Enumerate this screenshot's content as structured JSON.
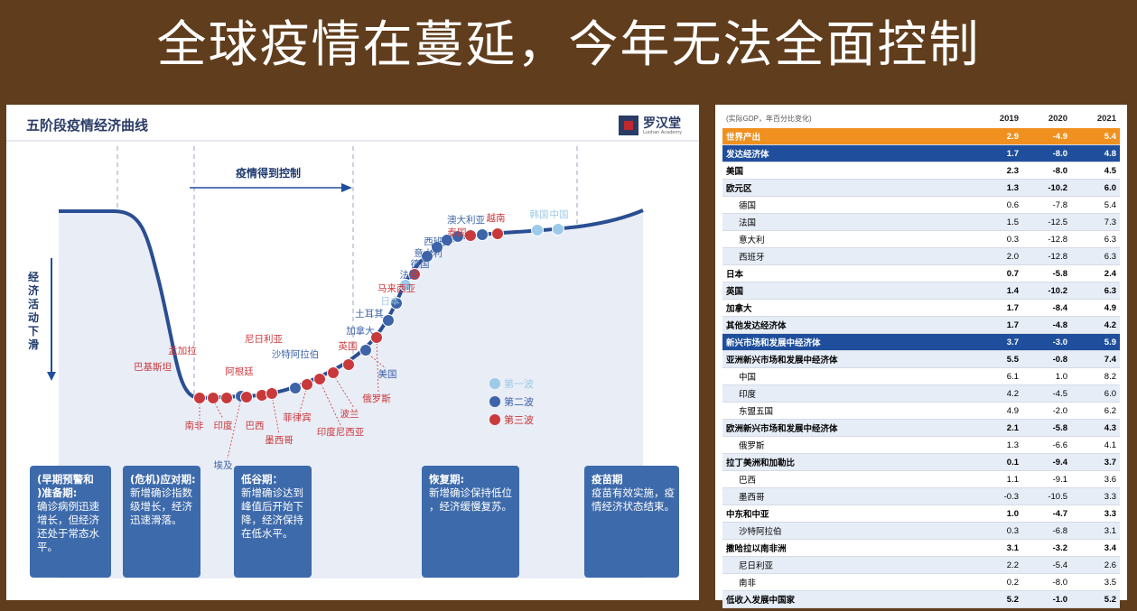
{
  "slide": {
    "title": "全球疫情在蔓延，今年无法全面控制"
  },
  "chart_data": [
    {
      "type": "line",
      "title": "五阶段疫情经济曲线",
      "logo": {
        "name": "罗汉堂",
        "sub": "Luohan Academy"
      },
      "y_axis_label": "经济活动下滑",
      "control_label": "疫情得到控制",
      "legend": [
        {
          "label": "第一波",
          "color": "#9ccae8"
        },
        {
          "label": "第二波",
          "color": "#3d63a8"
        },
        {
          "label": "第三波",
          "color": "#c9393c"
        }
      ],
      "countries": [
        {
          "name": "巴基斯坦",
          "wave": 3
        },
        {
          "name": "孟加拉",
          "wave": 3
        },
        {
          "name": "南非",
          "wave": 3
        },
        {
          "name": "印度",
          "wave": 3
        },
        {
          "name": "阿根廷",
          "wave": 3
        },
        {
          "name": "埃及",
          "wave": 2
        },
        {
          "name": "巴西",
          "wave": 3
        },
        {
          "name": "尼日利亚",
          "wave": 3
        },
        {
          "name": "墨西哥",
          "wave": 3
        },
        {
          "name": "沙特阿拉伯",
          "wave": 2
        },
        {
          "name": "菲律宾",
          "wave": 3
        },
        {
          "name": "印度尼西亚",
          "wave": 3
        },
        {
          "name": "波兰",
          "wave": 3
        },
        {
          "name": "英国",
          "wave": 3
        },
        {
          "name": "美国",
          "wave": 2
        },
        {
          "name": "俄罗斯",
          "wave": 3
        },
        {
          "name": "加拿大",
          "wave": 2
        },
        {
          "name": "土耳其",
          "wave": 2
        },
        {
          "name": "日本",
          "wave": 1
        },
        {
          "name": "马来西亚",
          "wave": 3
        },
        {
          "name": "法国",
          "wave": 2
        },
        {
          "name": "德国",
          "wave": 2
        },
        {
          "name": "意大利",
          "wave": 2
        },
        {
          "name": "西班牙",
          "wave": 2
        },
        {
          "name": "泰国",
          "wave": 3
        },
        {
          "name": "澳大利亚",
          "wave": 2
        },
        {
          "name": "越南",
          "wave": 3
        },
        {
          "name": "韩国",
          "wave": 1
        },
        {
          "name": "中国",
          "wave": 1
        }
      ],
      "stages": [
        {
          "title": "(早期预警和)准备期:",
          "text": "确诊病例迅速增长，但经济还处于常态水平。"
        },
        {
          "title": "(危机)应对期:",
          "text": "新增确诊指数级增长，经济迅速滑落。"
        },
        {
          "title": "低谷期：",
          "text": "新增确诊达到峰值后开始下降，经济保持在低水平。"
        },
        {
          "title": "恢复期:",
          "text": "新增确诊保持低位，经济缓慢复苏。"
        },
        {
          "title": "疫苗期",
          "text": "疫苗有效实施，疫情经济状态结束。"
        }
      ]
    },
    {
      "type": "table",
      "note": "(实际GDP，年百分比变化)",
      "columns": [
        "2019",
        "2020",
        "2021"
      ],
      "rows": [
        {
          "name": "世界产出",
          "values": [
            "2.9",
            "-4.9",
            "5.4"
          ],
          "style": "orange"
        },
        {
          "name": "发达经济体",
          "values": [
            "1.7",
            "-8.0",
            "4.8"
          ],
          "style": "blue"
        },
        {
          "name": "美国",
          "values": [
            "2.3",
            "-8.0",
            "4.5"
          ],
          "style": "bold"
        },
        {
          "name": "欧元区",
          "values": [
            "1.3",
            "-10.2",
            "6.0"
          ],
          "style": "bold"
        },
        {
          "name": "德国",
          "values": [
            "0.6",
            "-7.8",
            "5.4"
          ],
          "style": "indent"
        },
        {
          "name": "法国",
          "values": [
            "1.5",
            "-12.5",
            "7.3"
          ],
          "style": "indent"
        },
        {
          "name": "意大利",
          "values": [
            "0.3",
            "-12.8",
            "6.3"
          ],
          "style": "indent"
        },
        {
          "name": "西班牙",
          "values": [
            "2.0",
            "-12.8",
            "6.3"
          ],
          "style": "indent"
        },
        {
          "name": "日本",
          "values": [
            "0.7",
            "-5.8",
            "2.4"
          ],
          "style": "bold"
        },
        {
          "name": "英国",
          "values": [
            "1.4",
            "-10.2",
            "6.3"
          ],
          "style": "bold"
        },
        {
          "name": "加拿大",
          "values": [
            "1.7",
            "-8.4",
            "4.9"
          ],
          "style": "bold"
        },
        {
          "name": "其他发达经济体",
          "values": [
            "1.7",
            "-4.8",
            "4.2"
          ],
          "style": "bold"
        },
        {
          "name": "新兴市场和发展中经济体",
          "values": [
            "3.7",
            "-3.0",
            "5.9"
          ],
          "style": "blue"
        },
        {
          "name": "亚洲新兴市场和发展中经济体",
          "values": [
            "5.5",
            "-0.8",
            "7.4"
          ],
          "style": "bold"
        },
        {
          "name": "中国",
          "values": [
            "6.1",
            "1.0",
            "8.2"
          ],
          "style": "indent"
        },
        {
          "name": "印度",
          "values": [
            "4.2",
            "-4.5",
            "6.0"
          ],
          "style": "indent"
        },
        {
          "name": "东盟五国",
          "values": [
            "4.9",
            "-2.0",
            "6.2"
          ],
          "style": "indent"
        },
        {
          "name": "欧洲新兴市场和发展中经济体",
          "values": [
            "2.1",
            "-5.8",
            "4.3"
          ],
          "style": "bold"
        },
        {
          "name": "俄罗斯",
          "values": [
            "1.3",
            "-6.6",
            "4.1"
          ],
          "style": "indent"
        },
        {
          "name": "拉丁美洲和加勒比",
          "values": [
            "0.1",
            "-9.4",
            "3.7"
          ],
          "style": "bold"
        },
        {
          "name": "巴西",
          "values": [
            "1.1",
            "-9.1",
            "3.6"
          ],
          "style": "indent"
        },
        {
          "name": "墨西哥",
          "values": [
            "-0.3",
            "-10.5",
            "3.3"
          ],
          "style": "indent"
        },
        {
          "name": "中东和中亚",
          "values": [
            "1.0",
            "-4.7",
            "3.3"
          ],
          "style": "bold"
        },
        {
          "name": "沙特阿拉伯",
          "values": [
            "0.3",
            "-6.8",
            "3.1"
          ],
          "style": "indent"
        },
        {
          "name": "撒哈拉以南非洲",
          "values": [
            "3.1",
            "-3.2",
            "3.4"
          ],
          "style": "bold"
        },
        {
          "name": "尼日利亚",
          "values": [
            "2.2",
            "-5.4",
            "2.6"
          ],
          "style": "indent"
        },
        {
          "name": "南非",
          "values": [
            "0.2",
            "-8.0",
            "3.5"
          ],
          "style": "indent"
        },
        {
          "name": "低收入发展中国家",
          "values": [
            "5.2",
            "-1.0",
            "5.2"
          ],
          "style": "bold"
        }
      ]
    }
  ]
}
